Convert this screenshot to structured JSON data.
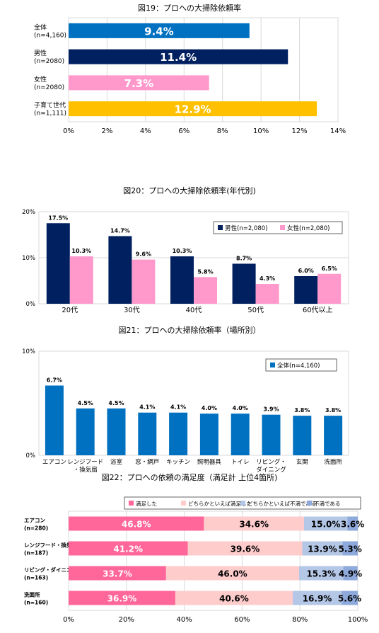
{
  "chart_data": [
    {
      "type": "bar",
      "orientation": "horizontal",
      "title": "図19：プロへの大掃除依頼率",
      "categories": [
        [
          "全体",
          "(n=4,160)"
        ],
        [
          "男性",
          "(n=2080)"
        ],
        [
          "女性",
          "(n=2080)"
        ],
        [
          "子育て世代",
          "(n=1,111)"
        ]
      ],
      "values": [
        9.4,
        11.4,
        7.3,
        12.9
      ],
      "value_labels": [
        "9.4%",
        "11.4%",
        "7.3%",
        "12.9%"
      ],
      "colors": [
        "#0070C0",
        "#002060",
        "#FF99CC",
        "#FFC000"
      ],
      "xlim": [
        0,
        14
      ],
      "ticks": [
        "0%",
        "2%",
        "4%",
        "6%",
        "8%",
        "10%",
        "12%",
        "14%"
      ],
      "grid": true
    },
    {
      "type": "bar",
      "title": "図20：プロへの大掃除依頼率(年代別)",
      "categories": [
        "20代",
        "30代",
        "40代",
        "50代",
        "60代以上"
      ],
      "series": [
        {
          "name": "男性(n=2,080)",
          "values": [
            17.5,
            14.7,
            10.3,
            8.7,
            6.0
          ],
          "labels": [
            "17.5%",
            "14.7%",
            "10.3%",
            "8.7%",
            "6.0%"
          ],
          "color": "#002060"
        },
        {
          "name": "女性(n=2,080)",
          "values": [
            10.3,
            9.6,
            5.8,
            4.3,
            6.5
          ],
          "labels": [
            "10.3%",
            "9.6%",
            "5.8%",
            "4.3%",
            "6.5%"
          ],
          "color": "#FF99CC"
        }
      ],
      "ylim": [
        0,
        20
      ],
      "ticks": [
        "0%",
        "10%",
        "20%"
      ],
      "legend": "top-right"
    },
    {
      "type": "bar",
      "title": "図21：プロへの大掃除依頼率（場所別）",
      "categories": [
        [
          "エアコン"
        ],
        [
          "レンジフード",
          "・換気扇"
        ],
        [
          "浴室"
        ],
        [
          "窓・網戸"
        ],
        [
          "キッチン"
        ],
        [
          "照明器具"
        ],
        [
          "トイレ"
        ],
        [
          "リビング・",
          "ダイニング"
        ],
        [
          "玄関"
        ],
        [
          "洗面所"
        ]
      ],
      "series": [
        {
          "name": "全体(n=4,160)",
          "values": [
            6.7,
            4.5,
            4.5,
            4.1,
            4.1,
            4.0,
            4.0,
            3.9,
            3.8,
            3.8
          ],
          "labels": [
            "6.7%",
            "4.5%",
            "4.5%",
            "4.1%",
            "4.1%",
            "4.0%",
            "4.0%",
            "3.9%",
            "3.8%",
            "3.8%"
          ],
          "color": "#0070C0"
        }
      ],
      "ylim": [
        0,
        10
      ],
      "ticks": [
        "0%",
        "10%"
      ],
      "legend": "top-right"
    },
    {
      "type": "bar",
      "orientation": "horizontal",
      "stacked": true,
      "title": "図22：プロへの依頼の満足度（満足計 上位4箇所)",
      "categories": [
        [
          "エアコン",
          "(n=280)"
        ],
        [
          "レンジフード・換気扇",
          "(n=187)"
        ],
        [
          "リビング・ダイニング",
          "(n=163)"
        ],
        [
          "洗面所",
          "(n=160)"
        ]
      ],
      "series": [
        {
          "name": "満足した",
          "values": [
            46.8,
            41.2,
            33.7,
            36.9
          ],
          "labels": [
            "46.8%",
            "41.2%",
            "33.7%",
            "36.9%"
          ],
          "color": "#FF6699"
        },
        {
          "name": "どちらかといえば満足した",
          "values": [
            34.6,
            39.6,
            46.0,
            40.6
          ],
          "labels": [
            "34.6%",
            "39.6%",
            "46.0%",
            "40.6%"
          ],
          "color": "#FFCCCC"
        },
        {
          "name": "どちらかといえば不満である",
          "values": [
            15.0,
            13.9,
            15.3,
            16.9
          ],
          "labels": [
            "15.0%",
            "13.9%",
            "15.3%",
            "16.9%"
          ],
          "color": "#B4C7E7"
        },
        {
          "name": "不満である",
          "values": [
            3.6,
            5.3,
            4.9,
            5.6
          ],
          "labels": [
            "3.6%",
            "5.3%",
            "4.9%",
            "5.6%"
          ],
          "color": "#8EA9DB"
        }
      ],
      "xlim": [
        0,
        100
      ],
      "ticks": [
        "0%",
        "20%",
        "40%",
        "60%",
        "80%",
        "100%"
      ],
      "legend": "top"
    }
  ]
}
